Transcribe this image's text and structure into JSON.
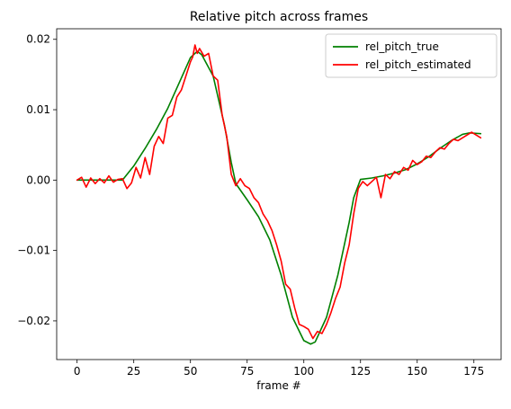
{
  "chart_data": {
    "type": "line",
    "title": "Relative pitch across frames",
    "xlabel": "frame #",
    "ylabel": "",
    "xlim": [
      -9,
      187
    ],
    "ylim": [
      -0.0255,
      0.0215
    ],
    "xticks": [
      0,
      25,
      50,
      75,
      100,
      125,
      150,
      175
    ],
    "xtick_labels": [
      "0",
      "25",
      "50",
      "75",
      "100",
      "125",
      "150",
      "175"
    ],
    "yticks": [
      -0.02,
      -0.01,
      0.0,
      0.01,
      0.02
    ],
    "ytick_labels": [
      "−0.02",
      "−0.01",
      "0.00",
      "0.01",
      "0.02"
    ],
    "grid": false,
    "legend_position": "top-right",
    "series": [
      {
        "name": "rel_pitch_true",
        "color": "#008000",
        "x": [
          0,
          5,
          10,
          15,
          20,
          25,
          30,
          35,
          40,
          45,
          50,
          53,
          55,
          60,
          65,
          68,
          70,
          75,
          80,
          85,
          90,
          95,
          100,
          103,
          105,
          110,
          115,
          120,
          122,
          125,
          130,
          135,
          140,
          145,
          150,
          155,
          160,
          165,
          170,
          173,
          178
        ],
        "y": [
          0,
          0,
          0,
          0,
          0,
          0.002,
          0.0045,
          0.0072,
          0.0102,
          0.0138,
          0.0174,
          0.0183,
          0.0178,
          0.0148,
          0.0078,
          0.0025,
          -0.0005,
          -0.0028,
          -0.0052,
          -0.0085,
          -0.0135,
          -0.0195,
          -0.0228,
          -0.0233,
          -0.023,
          -0.0195,
          -0.0135,
          -0.006,
          -0.0025,
          0.0001,
          0.0003,
          0.0006,
          0.001,
          0.0015,
          0.0023,
          0.0033,
          0.0045,
          0.0056,
          0.0065,
          0.0067,
          0.0066
        ]
      },
      {
        "name": "rel_pitch_estimated",
        "color": "#ff0000",
        "x": [
          0,
          2,
          4,
          6,
          8,
          10,
          12,
          14,
          16,
          18,
          20,
          22,
          24,
          26,
          28,
          30,
          32,
          34,
          36,
          38,
          40,
          42,
          44,
          46,
          48,
          50,
          51,
          52,
          53,
          54,
          56,
          58,
          60,
          62,
          64,
          66,
          68,
          70,
          72,
          74,
          76,
          78,
          80,
          82,
          84,
          86,
          88,
          90,
          92,
          94,
          96,
          98,
          100,
          102,
          104,
          106,
          108,
          110,
          112,
          114,
          116,
          118,
          120,
          122,
          124,
          126,
          128,
          130,
          132,
          134,
          136,
          138,
          140,
          142,
          144,
          146,
          148,
          150,
          152,
          154,
          156,
          158,
          160,
          162,
          164,
          166,
          168,
          170,
          172,
          174,
          176,
          178
        ],
        "y": [
          0,
          0.0004,
          -0.001,
          0.0003,
          -0.0005,
          0.0002,
          -0.0004,
          0.0006,
          -0.0003,
          0.0001,
          0.0002,
          -0.0012,
          -0.0004,
          0.0018,
          0.0003,
          0.0032,
          0.0008,
          0.0048,
          0.0062,
          0.0052,
          0.0088,
          0.0092,
          0.0118,
          0.0128,
          0.0148,
          0.0168,
          0.0175,
          0.0192,
          0.018,
          0.0187,
          0.0176,
          0.018,
          0.0148,
          0.0142,
          0.0092,
          0.0062,
          0.0008,
          -0.0008,
          0.0002,
          -0.0008,
          -0.0012,
          -0.0025,
          -0.0032,
          -0.0048,
          -0.0058,
          -0.0072,
          -0.0092,
          -0.0115,
          -0.0148,
          -0.0155,
          -0.0182,
          -0.0205,
          -0.0208,
          -0.0212,
          -0.0225,
          -0.0215,
          -0.0218,
          -0.0205,
          -0.0188,
          -0.0168,
          -0.0152,
          -0.0118,
          -0.0092,
          -0.0048,
          -0.0012,
          -0.0002,
          -0.0008,
          -0.0002,
          0.0004,
          -0.0025,
          0.0008,
          0.0002,
          0.0012,
          0.0008,
          0.0018,
          0.0014,
          0.0028,
          0.0022,
          0.0026,
          0.0034,
          0.0032,
          0.004,
          0.0046,
          0.0044,
          0.0052,
          0.0058,
          0.0056,
          0.006,
          0.0064,
          0.0068,
          0.0064,
          0.006
        ]
      }
    ]
  }
}
